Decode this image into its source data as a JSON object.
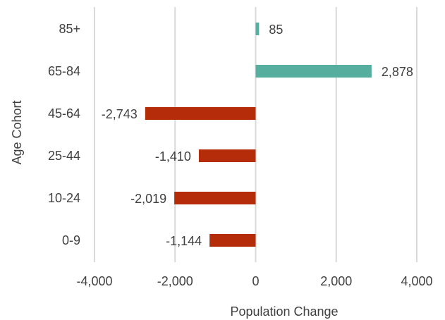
{
  "chart_data": {
    "type": "bar",
    "orientation": "horizontal",
    "title": "",
    "xlabel": "Population Change",
    "ylabel": "Age Cohort",
    "categories": [
      "85+",
      "65-84",
      "45-64",
      "25-44",
      "10-24",
      "0-9"
    ],
    "values": [
      85,
      2878,
      -2743,
      -1410,
      -2019,
      -1144
    ],
    "value_labels": [
      "85",
      "2,878",
      "-2,743",
      "-1,410",
      "-2,019",
      "-1,144"
    ],
    "xlim": [
      -4000,
      4000
    ],
    "xticks": [
      -4000,
      -2000,
      0,
      2000,
      4000
    ],
    "xtick_labels": [
      "-4,000",
      "-2,000",
      "0",
      "2,000",
      "4,000"
    ],
    "grid": "vertical",
    "legend": "none",
    "colors": {
      "positive": "#56ae9f",
      "negative": "#b52c0b",
      "grid": "#d9d9d9",
      "text": "#404040"
    }
  }
}
